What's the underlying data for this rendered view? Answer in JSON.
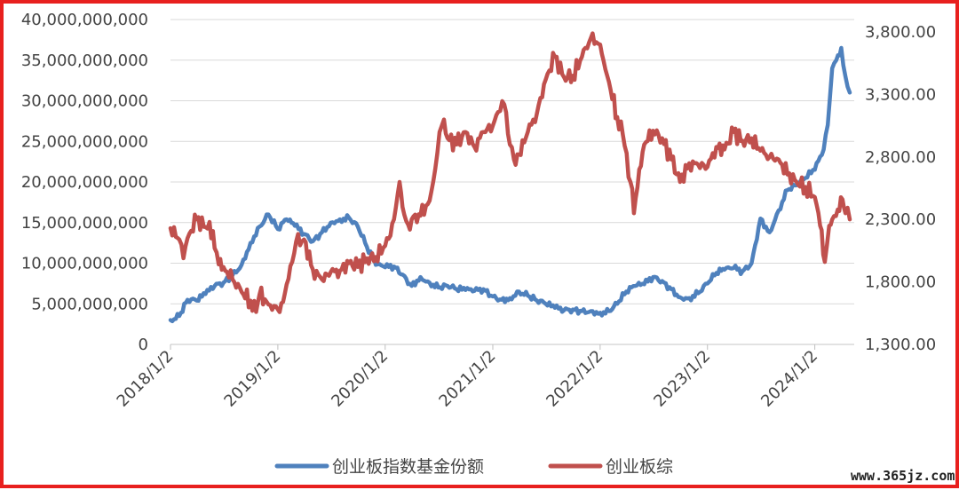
{
  "chart_data": {
    "type": "line",
    "title": "",
    "xlabel": "",
    "x_ticks": [
      "2018/1/2",
      "2019/1/2",
      "2020/1/2",
      "2021/1/2",
      "2022/1/2",
      "2023/1/2",
      "2024/1/2"
    ],
    "y_left": {
      "ticks": [
        0,
        5000000000,
        10000000000,
        15000000000,
        20000000000,
        25000000000,
        30000000000,
        35000000000,
        40000000000
      ],
      "tick_labels": [
        "0",
        "5,000,000,000",
        "10,000,000,000",
        "15,000,000,000",
        "20,000,000,000",
        "25,000,000,000",
        "30,000,000,000",
        "35,000,000,000",
        "40,000,000,000"
      ],
      "ylim": [
        0,
        40000000000
      ]
    },
    "y_right": {
      "ticks": [
        1300,
        1800,
        2300,
        2800,
        3300,
        3800
      ],
      "tick_labels": [
        "1,300.00",
        "1,800.00",
        "2,300.00",
        "2,800.00",
        "3,300.00",
        "3,800.00"
      ],
      "ylim": [
        1300,
        3900
      ]
    },
    "grid": "horizontal",
    "legend_position": "bottom",
    "series": [
      {
        "name": "创业板指数基金份额",
        "axis": "left",
        "color": "#4F81BD",
        "points": [
          [
            "2018-01-02",
            3000000000
          ],
          [
            "2018-02-01",
            3500000000
          ],
          [
            "2018-03-01",
            5500000000
          ],
          [
            "2018-04-01",
            5400000000
          ],
          [
            "2018-05-01",
            6200000000
          ],
          [
            "2018-06-01",
            7200000000
          ],
          [
            "2018-07-01",
            7600000000
          ],
          [
            "2018-08-01",
            8500000000
          ],
          [
            "2018-09-01",
            9800000000
          ],
          [
            "2018-10-01",
            12500000000
          ],
          [
            "2018-11-01",
            14500000000
          ],
          [
            "2018-12-01",
            16000000000
          ],
          [
            "2019-01-02",
            14200000000
          ],
          [
            "2019-02-01",
            15400000000
          ],
          [
            "2019-03-01",
            14600000000
          ],
          [
            "2019-04-01",
            13600000000
          ],
          [
            "2019-05-01",
            12700000000
          ],
          [
            "2019-06-01",
            13800000000
          ],
          [
            "2019-07-01",
            15000000000
          ],
          [
            "2019-08-01",
            15400000000
          ],
          [
            "2019-09-01",
            15600000000
          ],
          [
            "2019-10-01",
            14500000000
          ],
          [
            "2019-11-01",
            12000000000
          ],
          [
            "2019-12-01",
            9800000000
          ],
          [
            "2020-01-02",
            9500000000
          ],
          [
            "2020-02-01",
            9600000000
          ],
          [
            "2020-03-01",
            8600000000
          ],
          [
            "2020-04-01",
            7200000000
          ],
          [
            "2020-05-01",
            8300000000
          ],
          [
            "2020-06-01",
            7600000000
          ],
          [
            "2020-07-01",
            7000000000
          ],
          [
            "2020-08-01",
            7200000000
          ],
          [
            "2020-09-01",
            6800000000
          ],
          [
            "2020-10-01",
            6700000000
          ],
          [
            "2020-11-01",
            6600000000
          ],
          [
            "2020-12-01",
            6800000000
          ],
          [
            "2021-01-02",
            5900000000
          ],
          [
            "2021-02-01",
            5500000000
          ],
          [
            "2021-03-01",
            5700000000
          ],
          [
            "2021-04-01",
            6500000000
          ],
          [
            "2021-05-01",
            6000000000
          ],
          [
            "2021-06-01",
            5400000000
          ],
          [
            "2021-07-01",
            5000000000
          ],
          [
            "2021-08-01",
            4500000000
          ],
          [
            "2021-09-01",
            4200000000
          ],
          [
            "2021-10-01",
            4300000000
          ],
          [
            "2021-11-01",
            4100000000
          ],
          [
            "2021-12-01",
            4100000000
          ],
          [
            "2022-01-02",
            3900000000
          ],
          [
            "2022-02-01",
            4100000000
          ],
          [
            "2022-03-01",
            5000000000
          ],
          [
            "2022-04-01",
            6500000000
          ],
          [
            "2022-05-01",
            7200000000
          ],
          [
            "2022-06-01",
            7400000000
          ],
          [
            "2022-07-01",
            8300000000
          ],
          [
            "2022-08-01",
            7800000000
          ],
          [
            "2022-09-01",
            6800000000
          ],
          [
            "2022-10-01",
            5800000000
          ],
          [
            "2022-11-01",
            5700000000
          ],
          [
            "2022-12-01",
            6300000000
          ],
          [
            "2023-01-02",
            7500000000
          ],
          [
            "2023-02-01",
            8800000000
          ],
          [
            "2023-03-01",
            9200000000
          ],
          [
            "2023-04-01",
            9400000000
          ],
          [
            "2023-05-01",
            9000000000
          ],
          [
            "2023-06-01",
            10000000000
          ],
          [
            "2023-07-01",
            15500000000
          ],
          [
            "2023-08-01",
            13800000000
          ],
          [
            "2023-09-01",
            16500000000
          ],
          [
            "2023-10-01",
            19000000000
          ],
          [
            "2023-11-01",
            19600000000
          ],
          [
            "2023-12-01",
            20500000000
          ],
          [
            "2024-01-02",
            21500000000
          ],
          [
            "2024-02-01",
            24000000000
          ],
          [
            "2024-02-15",
            27000000000
          ],
          [
            "2024-03-01",
            34000000000
          ],
          [
            "2024-03-15",
            35000000000
          ],
          [
            "2024-04-01",
            36500000000
          ],
          [
            "2024-04-15",
            33000000000
          ],
          [
            "2024-04-30",
            31000000000
          ]
        ]
      },
      {
        "name": "创业板综",
        "axis": "right",
        "color": "#C0504D",
        "points": [
          [
            "2018-01-02",
            2230
          ],
          [
            "2018-02-01",
            2140
          ],
          [
            "2018-02-15",
            1990
          ],
          [
            "2018-03-01",
            2150
          ],
          [
            "2018-04-01",
            2300
          ],
          [
            "2018-05-01",
            2240
          ],
          [
            "2018-05-15",
            2280
          ],
          [
            "2018-06-01",
            2070
          ],
          [
            "2018-06-15",
            1940
          ],
          [
            "2018-07-01",
            1920
          ],
          [
            "2018-08-01",
            1820
          ],
          [
            "2018-09-01",
            1720
          ],
          [
            "2018-10-01",
            1650
          ],
          [
            "2018-10-20",
            1560
          ],
          [
            "2018-11-01",
            1700
          ],
          [
            "2018-12-01",
            1620
          ],
          [
            "2019-01-02",
            1580
          ],
          [
            "2019-01-20",
            1640
          ],
          [
            "2019-02-01",
            1780
          ],
          [
            "2019-02-20",
            1960
          ],
          [
            "2019-03-05",
            2120
          ],
          [
            "2019-04-01",
            2140
          ],
          [
            "2019-05-01",
            1900
          ],
          [
            "2019-06-01",
            1820
          ],
          [
            "2019-07-01",
            1880
          ],
          [
            "2019-08-01",
            1890
          ],
          [
            "2019-09-01",
            1950
          ],
          [
            "2019-10-01",
            1920
          ],
          [
            "2019-11-01",
            1990
          ],
          [
            "2019-12-01",
            2000
          ],
          [
            "2020-01-02",
            2090
          ],
          [
            "2020-01-20",
            2170
          ],
          [
            "2020-02-01",
            2300
          ],
          [
            "2020-02-20",
            2600
          ],
          [
            "2020-03-01",
            2400
          ],
          [
            "2020-03-20",
            2260
          ],
          [
            "2020-04-01",
            2300
          ],
          [
            "2020-05-01",
            2330
          ],
          [
            "2020-06-01",
            2450
          ],
          [
            "2020-06-20",
            2700
          ],
          [
            "2020-07-05",
            3000
          ],
          [
            "2020-07-20",
            3100
          ],
          [
            "2020-08-01",
            2950
          ],
          [
            "2020-09-01",
            2900
          ],
          [
            "2020-10-01",
            3000
          ],
          [
            "2020-11-01",
            2880
          ],
          [
            "2020-12-01",
            3000
          ],
          [
            "2021-01-02",
            3050
          ],
          [
            "2021-01-20",
            3160
          ],
          [
            "2021-02-10",
            3220
          ],
          [
            "2021-03-01",
            2900
          ],
          [
            "2021-03-15",
            2780
          ],
          [
            "2021-04-01",
            2820
          ],
          [
            "2021-05-01",
            3000
          ],
          [
            "2021-06-01",
            3150
          ],
          [
            "2021-07-01",
            3420
          ],
          [
            "2021-08-01",
            3600
          ],
          [
            "2021-09-01",
            3440
          ],
          [
            "2021-10-01",
            3450
          ],
          [
            "2021-11-01",
            3600
          ],
          [
            "2021-12-01",
            3750
          ],
          [
            "2022-01-02",
            3700
          ],
          [
            "2022-01-20",
            3500
          ],
          [
            "2022-02-01",
            3400
          ],
          [
            "2022-03-01",
            3120
          ],
          [
            "2022-03-20",
            2980
          ],
          [
            "2022-04-15",
            2600
          ],
          [
            "2022-04-27",
            2350
          ],
          [
            "2022-05-15",
            2700
          ],
          [
            "2022-06-01",
            2900
          ],
          [
            "2022-07-01",
            3010
          ],
          [
            "2022-08-01",
            2950
          ],
          [
            "2022-09-01",
            2780
          ],
          [
            "2022-10-01",
            2600
          ],
          [
            "2022-11-01",
            2750
          ],
          [
            "2022-12-01",
            2740
          ],
          [
            "2023-01-02",
            2720
          ],
          [
            "2023-02-01",
            2880
          ],
          [
            "2023-03-01",
            2860
          ],
          [
            "2023-04-01",
            3000
          ],
          [
            "2023-05-01",
            2930
          ],
          [
            "2023-06-01",
            2950
          ],
          [
            "2023-07-01",
            2850
          ],
          [
            "2023-08-01",
            2800
          ],
          [
            "2023-09-01",
            2780
          ],
          [
            "2023-10-01",
            2660
          ],
          [
            "2023-11-01",
            2600
          ],
          [
            "2023-12-01",
            2560
          ],
          [
            "2024-01-02",
            2480
          ],
          [
            "2024-01-20",
            2250
          ],
          [
            "2024-02-05",
            1960
          ],
          [
            "2024-02-20",
            2250
          ],
          [
            "2024-03-01",
            2300
          ],
          [
            "2024-03-20",
            2380
          ],
          [
            "2024-04-05",
            2460
          ],
          [
            "2024-04-15",
            2350
          ],
          [
            "2024-04-30",
            2300
          ]
        ]
      }
    ]
  },
  "watermark": "www.365jz.com"
}
